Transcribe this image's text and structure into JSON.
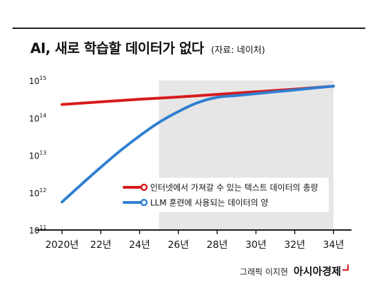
{
  "header": {
    "title": "AI, 새로 학습할 데이터가 없다",
    "source": "(자료: 네이처)"
  },
  "footer": {
    "graphic_credit": "그래픽 이지현",
    "brand": "아시아경제"
  },
  "colors": {
    "red_series": "#d7191c",
    "blue_series": "#2f7fd1",
    "shade": "#e6e6e6",
    "axis": "#1a1a1a"
  },
  "chart_data": {
    "type": "line",
    "title": "AI, 새로 학습할 데이터가 없다",
    "xlabel": "",
    "ylabel": "",
    "x_unit_suffix": "년",
    "xlim": [
      2020,
      2034
    ],
    "ylim_log10": [
      11,
      15
    ],
    "y_scale": "log",
    "y_ticks": [
      {
        "exp": 15,
        "base": "10",
        "sup": "15"
      },
      {
        "exp": 14,
        "base": "10",
        "sup": "14"
      },
      {
        "exp": 13,
        "base": "10",
        "sup": "13"
      },
      {
        "exp": 12,
        "base": "10",
        "sup": "12"
      },
      {
        "exp": 11,
        "base": "10",
        "sup": "11"
      }
    ],
    "x_ticks": [
      {
        "x": 2020,
        "label": "2020년"
      },
      {
        "x": 2022,
        "label": "22년"
      },
      {
        "x": 2024,
        "label": "24년"
      },
      {
        "x": 2026,
        "label": "26년"
      },
      {
        "x": 2028,
        "label": "28년"
      },
      {
        "x": 2030,
        "label": "30년"
      },
      {
        "x": 2032,
        "label": "32년"
      },
      {
        "x": 2034,
        "label": "34년"
      }
    ],
    "shaded_region": {
      "x_from": 2025,
      "x_to": 2034
    },
    "legend_position": "center-right",
    "series": [
      {
        "name": "인터넷에서 가져갈 수 있는 텍스트 데이터의 총량",
        "color": "#d7191c",
        "x": [
          2020,
          2022,
          2024,
          2026,
          2028,
          2030,
          2032,
          2034
        ],
        "log10_values": [
          14.36,
          14.43,
          14.5,
          14.56,
          14.63,
          14.7,
          14.77,
          14.85
        ]
      },
      {
        "name": "LLM 훈련에 사용되는 데이터의 양",
        "color": "#2f7fd1",
        "x": [
          2020,
          2021,
          2022,
          2023,
          2024,
          2025,
          2026,
          2027,
          2028,
          2029,
          2030,
          2031,
          2032,
          2033,
          2034
        ],
        "log10_values": [
          11.75,
          12.22,
          12.68,
          13.12,
          13.52,
          13.88,
          14.17,
          14.41,
          14.55,
          14.6,
          14.65,
          14.7,
          14.75,
          14.8,
          14.85
        ]
      }
    ]
  }
}
